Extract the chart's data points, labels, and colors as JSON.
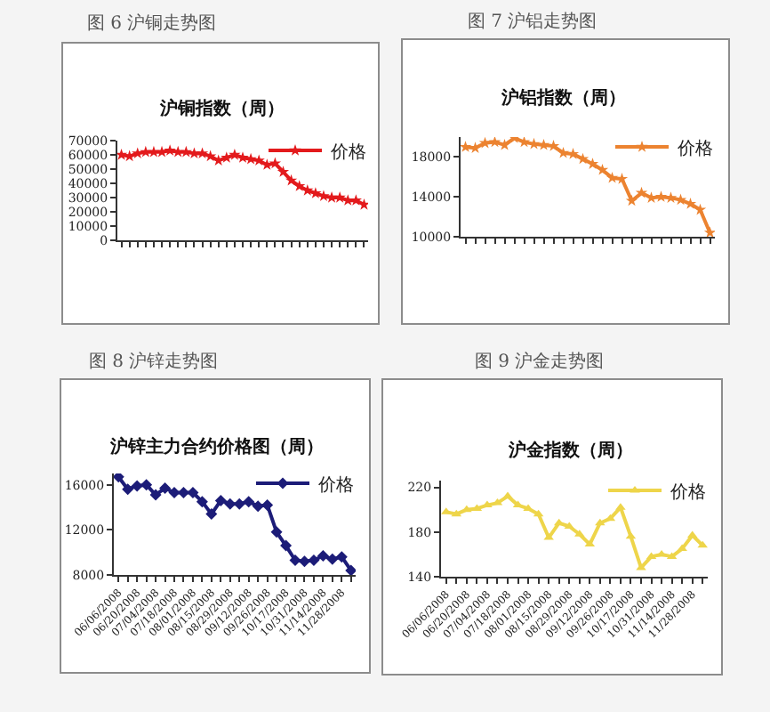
{
  "chart_data": [
    {
      "type": "line",
      "title": "沪铜指数（周）",
      "annotations": [
        "图 6 沪铜走势图"
      ],
      "categories": [
        null,
        null,
        null,
        null,
        null,
        null,
        null,
        null,
        null,
        null,
        null,
        null,
        null,
        null,
        null,
        null,
        null,
        null,
        null,
        null,
        null,
        null,
        null,
        null,
        null,
        null,
        null,
        null,
        null,
        null,
        null
      ],
      "series": [
        {
          "name": "价格",
          "color": "#e31a1c",
          "values": [
            60000,
            59000,
            61000,
            62000,
            62000,
            62000,
            63000,
            62000,
            62000,
            61000,
            61000,
            59000,
            56000,
            58000,
            60000,
            58000,
            57000,
            56000,
            53000,
            54000,
            48000,
            42000,
            38000,
            35000,
            33000,
            31000,
            30000,
            30000,
            28000,
            28000,
            25000
          ]
        }
      ],
      "ylim": [
        0,
        70000
      ],
      "yticks": [
        0,
        10000,
        20000,
        30000,
        40000,
        50000,
        60000,
        70000
      ],
      "legend": "top right",
      "marker": "star",
      "tick_labels": "y"
    },
    {
      "type": "line",
      "title": "沪铝指数（周）",
      "annotations": [
        "图 7 沪铝走势图"
      ],
      "categories": [
        null,
        null,
        null,
        null,
        null,
        null,
        null,
        null,
        null,
        null,
        null,
        null,
        null,
        null,
        null,
        null,
        null,
        null,
        null,
        null,
        null,
        null,
        null,
        null,
        null,
        null
      ],
      "series": [
        {
          "name": "价格",
          "color": "#ec8330",
          "values": [
            19000,
            18900,
            19400,
            19500,
            19200,
            19900,
            19500,
            19300,
            19200,
            19100,
            18400,
            18300,
            17800,
            17300,
            16700,
            15900,
            15800,
            13600,
            14400,
            13900,
            14000,
            13900,
            13700,
            13300,
            12700,
            10400
          ]
        }
      ],
      "ylim": [
        10000,
        20000
      ],
      "yticks": [
        10000,
        14000,
        18000
      ],
      "legend": "top right",
      "marker": "star",
      "tick_labels": "y"
    },
    {
      "type": "line",
      "title": "沪锌主力合约价格图（周）",
      "annotations": [
        "图 8 沪锌走势图"
      ],
      "categories": [
        "06/06/2008",
        null,
        "06/20/2008",
        null,
        "07/04/2008",
        null,
        "07/18/2008",
        null,
        "08/01/2008",
        null,
        "08/15/2008",
        null,
        "08/29/2008",
        null,
        "09/12/2008",
        null,
        "09/26/2008",
        null,
        "10/17/2008",
        null,
        "10/31/2008",
        null,
        "11/14/2008",
        null,
        "11/28/2008",
        null
      ],
      "series": [
        {
          "name": "价格",
          "color": "#1c1c78",
          "values": [
            16700,
            15600,
            15900,
            16000,
            15100,
            15700,
            15300,
            15300,
            15300,
            14500,
            13400,
            14600,
            14300,
            14300,
            14500,
            14100,
            14200,
            11800,
            10600,
            9300,
            9200,
            9300,
            9700,
            9400,
            9600,
            8400
          ]
        }
      ],
      "ylim": [
        8000,
        17000
      ],
      "yticks": [
        8000,
        12000,
        16000
      ],
      "legend": "top right",
      "marker": "diamond"
    },
    {
      "type": "line",
      "title": "沪金指数（周）",
      "annotations": [
        "图 9 沪金走势图"
      ],
      "categories": [
        "06/06/2008",
        null,
        "06/20/2008",
        null,
        "07/04/2008",
        null,
        "07/18/2008",
        null,
        "08/01/2008",
        null,
        "08/15/2008",
        null,
        "08/29/2008",
        null,
        "09/12/2008",
        null,
        "09/26/2008",
        null,
        "10/17/2008",
        null,
        "10/31/2008",
        null,
        "11/14/2008",
        null,
        "11/28/2008",
        null
      ],
      "series": [
        {
          "name": "价格",
          "color": "#eed54a",
          "values": [
            198,
            196,
            200,
            201,
            204,
            206,
            212,
            204,
            201,
            196,
            175,
            188,
            185,
            178,
            169,
            188,
            192,
            202,
            176,
            148,
            158,
            160,
            158,
            165,
            177,
            168
          ]
        }
      ],
      "ylim": [
        140,
        226
      ],
      "yticks": [
        140,
        180,
        220
      ],
      "legend": "top right",
      "marker": "triangle"
    }
  ]
}
